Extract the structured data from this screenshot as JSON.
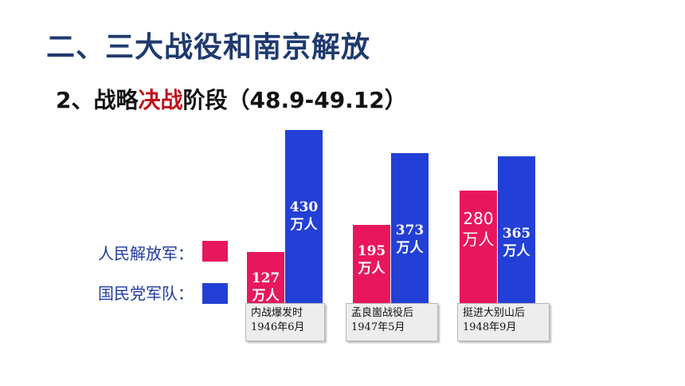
{
  "title": "二、三大战役和南京解放",
  "subtitle": {
    "prefix": "2、战略",
    "highlight": "决战",
    "suffix": "阶段（48.9-49.12）"
  },
  "colors": {
    "pla": "#e8175d",
    "kmt": "#2340d6",
    "title": "#1f3a6e",
    "highlight": "#c0141c"
  },
  "legend": [
    {
      "label": "人民解放军：",
      "color": "#e8175d"
    },
    {
      "label": "国民党军队：",
      "color": "#2340d6"
    }
  ],
  "chart_data": {
    "type": "bar",
    "unit": "万人",
    "categories": [
      {
        "name": "内战爆发时",
        "date": "1946年6月"
      },
      {
        "name": "孟良崮战役后",
        "date": "1947年5月"
      },
      {
        "name": "挺进大别山后",
        "date": "1948年9月"
      }
    ],
    "series": [
      {
        "name": "人民解放军",
        "values": [
          127,
          195,
          280
        ]
      },
      {
        "name": "国民党军队",
        "values": [
          430,
          373,
          365
        ]
      }
    ]
  }
}
